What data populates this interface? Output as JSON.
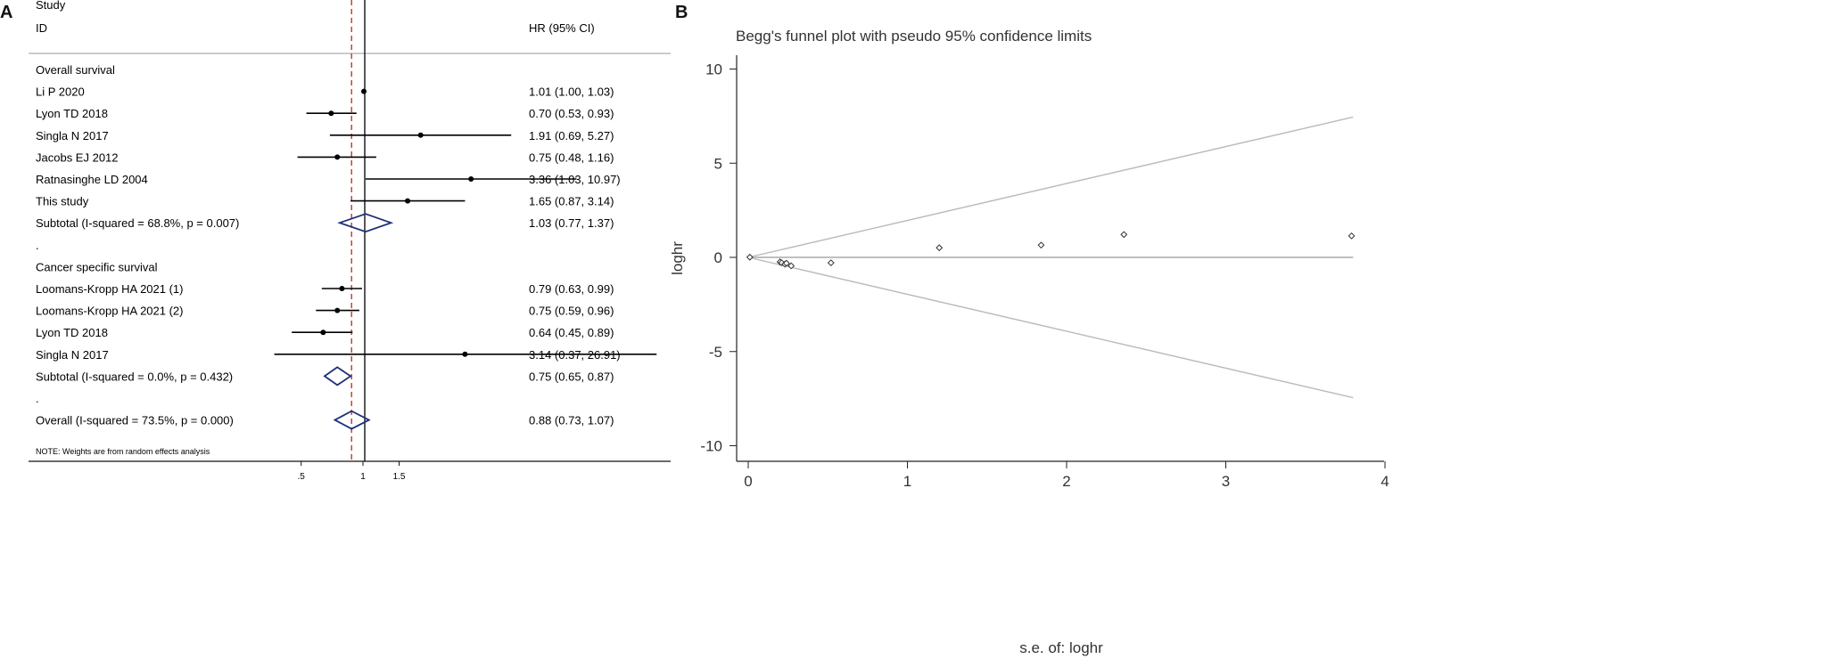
{
  "chart_data": [
    {
      "panel": "A",
      "type": "forest",
      "header": {
        "study": "Study",
        "id": "ID",
        "effect": "HR (95% CI)"
      },
      "xticks": [
        0.5,
        1,
        1.5
      ],
      "xtick_labels": [
        ".5",
        "1",
        "1.5"
      ],
      "null_value": 1,
      "overall_reference": 0.88,
      "rows": [
        {
          "kind": "group",
          "label": "Overall survival"
        },
        {
          "kind": "study",
          "label": "Li P 2020",
          "hr": 1.01,
          "lo": 1.0,
          "hi": 1.03,
          "ci": "1.01 (1.00, 1.03)"
        },
        {
          "kind": "study",
          "label": "Lyon TD 2018",
          "hr": 0.7,
          "lo": 0.53,
          "hi": 0.93,
          "ci": "0.70 (0.53, 0.93)"
        },
        {
          "kind": "study",
          "label": "Singla N 2017",
          "hr": 1.91,
          "lo": 0.69,
          "hi": 5.27,
          "ci": "1.91 (0.69, 5.27)"
        },
        {
          "kind": "study",
          "label": "Jacobs EJ 2012",
          "hr": 0.75,
          "lo": 0.48,
          "hi": 1.16,
          "ci": "0.75 (0.48, 1.16)"
        },
        {
          "kind": "study",
          "label": "Ratnasinghe LD 2004",
          "hr": 3.36,
          "lo": 1.03,
          "hi": 10.97,
          "ci": "3.36 (1.03, 10.97)"
        },
        {
          "kind": "study",
          "label": "This study",
          "hr": 1.65,
          "lo": 0.87,
          "hi": 3.14,
          "ci": "1.65 (0.87, 3.14)"
        },
        {
          "kind": "subtotal",
          "label": "Subtotal  (I-squared = 68.8%, p = 0.007)",
          "hr": 1.03,
          "lo": 0.77,
          "hi": 1.37,
          "ci": "1.03 (0.77, 1.37)"
        },
        {
          "kind": "spacer",
          "label": "."
        },
        {
          "kind": "group",
          "label": "Cancer specific survival"
        },
        {
          "kind": "study",
          "label": "Loomans-Kropp HA 2021 (1)",
          "hr": 0.79,
          "lo": 0.63,
          "hi": 0.99,
          "ci": "0.79 (0.63, 0.99)"
        },
        {
          "kind": "study",
          "label": "Loomans-Kropp HA 2021 (2)",
          "hr": 0.75,
          "lo": 0.59,
          "hi": 0.96,
          "ci": "0.75 (0.59, 0.96)"
        },
        {
          "kind": "study",
          "label": "Lyon TD 2018",
          "hr": 0.64,
          "lo": 0.45,
          "hi": 0.89,
          "ci": "0.64 (0.45, 0.89)"
        },
        {
          "kind": "study",
          "label": "Singla N 2017",
          "hr": 3.14,
          "lo": 0.37,
          "hi": 26.91,
          "ci": "3.14 (0.37, 26.91)"
        },
        {
          "kind": "subtotal",
          "label": "Subtotal  (I-squared = 0.0%, p = 0.432)",
          "hr": 0.75,
          "lo": 0.65,
          "hi": 0.87,
          "ci": "0.75 (0.65, 0.87)"
        },
        {
          "kind": "spacer",
          "label": "."
        },
        {
          "kind": "overall",
          "label": "Overall  (I-squared = 73.5%, p = 0.000)",
          "hr": 0.88,
          "lo": 0.73,
          "hi": 1.07,
          "ci": "0.88 (0.73, 1.07)"
        }
      ],
      "note": "NOTE: Weights are from random effects analysis"
    },
    {
      "panel": "B",
      "type": "scatter",
      "title": "Begg's funnel plot with pseudo 95% confidence limits",
      "xlabel": "s.e. of: loghr",
      "ylabel": "loghr",
      "xlim": [
        0,
        4
      ],
      "ylim": [
        -10,
        10
      ],
      "xticks": [
        0,
        1,
        2,
        3,
        4
      ],
      "yticks": [
        -10,
        -5,
        0,
        5,
        10
      ],
      "pooled_estimate": 0,
      "funnel_limit_at_max_se": 7.45,
      "funnel_max_se": 3.8,
      "points": [
        {
          "x": 0.01,
          "y": 0.01
        },
        {
          "x": 0.2,
          "y": -0.24
        },
        {
          "x": 0.21,
          "y": -0.29
        },
        {
          "x": 0.23,
          "y": -0.36
        },
        {
          "x": 0.24,
          "y": -0.31
        },
        {
          "x": 0.27,
          "y": -0.45
        },
        {
          "x": 0.52,
          "y": -0.29
        },
        {
          "x": 1.2,
          "y": 0.51
        },
        {
          "x": 1.84,
          "y": 0.65
        },
        {
          "x": 2.36,
          "y": 1.21
        },
        {
          "x": 3.79,
          "y": 1.14
        }
      ]
    }
  ],
  "panels": {
    "a": "A",
    "b": "B"
  }
}
